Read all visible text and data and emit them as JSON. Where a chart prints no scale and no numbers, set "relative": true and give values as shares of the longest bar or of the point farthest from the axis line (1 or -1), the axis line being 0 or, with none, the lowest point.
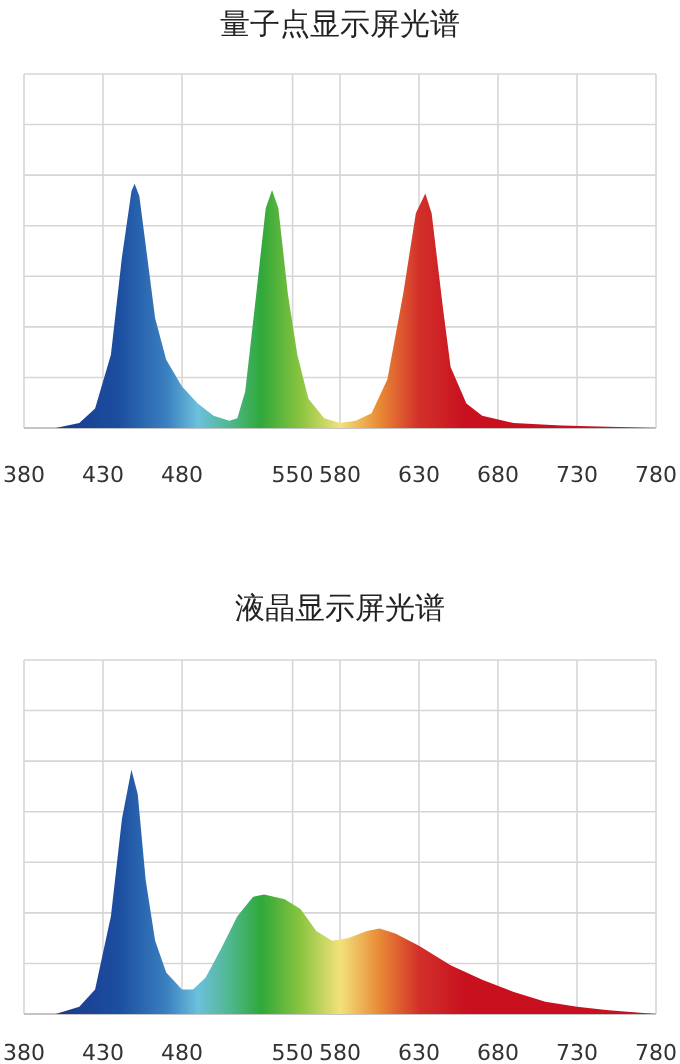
{
  "chart_data": [
    {
      "type": "area",
      "title": "量子点显示屏光谱",
      "relative": true,
      "grid": true,
      "tick_labels": "x",
      "xlim": [
        380,
        780
      ],
      "xticks": [
        380,
        430,
        480,
        550,
        580,
        630,
        680,
        730,
        780
      ],
      "series": [
        {
          "x": [
            400,
            415,
            425,
            435,
            442,
            448,
            450,
            453,
            458,
            463,
            470,
            480,
            490,
            500,
            510,
            515,
            520,
            527,
            533,
            537,
            541,
            547,
            553,
            560,
            570,
            580,
            590,
            600,
            610,
            620,
            628,
            634,
            638,
            645,
            650,
            660,
            670,
            690,
            720,
            780
          ],
          "values": [
            0,
            0.02,
            0.08,
            0.3,
            0.7,
            0.97,
            1,
            0.95,
            0.7,
            0.45,
            0.28,
            0.17,
            0.1,
            0.05,
            0.03,
            0.04,
            0.15,
            0.55,
            0.9,
            0.975,
            0.9,
            0.55,
            0.3,
            0.12,
            0.04,
            0.02,
            0.03,
            0.06,
            0.2,
            0.55,
            0.88,
            0.96,
            0.88,
            0.5,
            0.25,
            0.1,
            0.05,
            0.02,
            0.01,
            0
          ]
        }
      ]
    },
    {
      "type": "area",
      "title": "液晶显示屏光谱",
      "relative": true,
      "grid": true,
      "tick_labels": "x",
      "xlim": [
        380,
        780
      ],
      "xticks": [
        380,
        430,
        480,
        550,
        580,
        630,
        680,
        730,
        780
      ],
      "series": [
        {
          "x": [
            400,
            415,
            425,
            435,
            442,
            448,
            452,
            457,
            463,
            470,
            480,
            487,
            495,
            505,
            515,
            525,
            532,
            545,
            555,
            565,
            575,
            585,
            597,
            605,
            615,
            630,
            650,
            670,
            690,
            710,
            730,
            750,
            780
          ],
          "values": [
            0,
            0.03,
            0.1,
            0.4,
            0.8,
            1,
            0.9,
            0.55,
            0.3,
            0.17,
            0.1,
            0.1,
            0.15,
            0.27,
            0.4,
            0.48,
            0.49,
            0.47,
            0.43,
            0.34,
            0.3,
            0.31,
            0.34,
            0.35,
            0.33,
            0.28,
            0.2,
            0.14,
            0.09,
            0.05,
            0.03,
            0.015,
            0
          ]
        }
      ]
    }
  ]
}
